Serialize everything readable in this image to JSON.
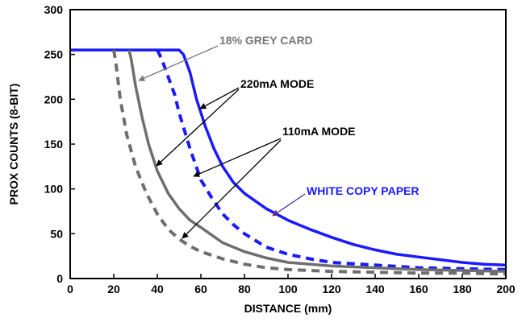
{
  "chart_data": {
    "type": "line",
    "title": "",
    "xlabel": "DISTANCE (mm)",
    "ylabel": "PROX COUNTS (8-BIT)",
    "xlim": [
      0,
      200
    ],
    "ylim": [
      0,
      300
    ],
    "xticks": [
      0,
      20,
      40,
      60,
      80,
      100,
      120,
      140,
      160,
      180,
      200
    ],
    "yticks": [
      0,
      50,
      100,
      150,
      200,
      250,
      300
    ],
    "grid": false,
    "series": [
      {
        "color": "#1a1aff",
        "style": "solid",
        "x": [
          0,
          50,
          52,
          55,
          58,
          62,
          66,
          70,
          75,
          80,
          90,
          100,
          110,
          120,
          130,
          140,
          150,
          160,
          170,
          180,
          190,
          200
        ],
        "y": [
          255,
          255,
          250,
          230,
          200,
          170,
          145,
          125,
          107,
          95,
          78,
          65,
          55,
          46,
          38,
          32,
          27,
          24,
          21,
          18,
          16,
          15
        ]
      },
      {
        "color": "#1a1aff",
        "style": "dashed",
        "x": [
          40,
          42,
          45,
          48,
          50,
          55,
          60,
          65,
          70,
          75,
          80,
          90,
          100,
          110,
          120,
          140,
          160,
          180,
          200
        ],
        "y": [
          255,
          245,
          225,
          205,
          185,
          145,
          110,
          90,
          72,
          60,
          50,
          35,
          27,
          22,
          18,
          15,
          12,
          11,
          10
        ]
      },
      {
        "color": "#6e6e6e",
        "style": "solid",
        "x": [
          27,
          28,
          30,
          33,
          36,
          40,
          45,
          50,
          55,
          60,
          70,
          80,
          90,
          100,
          120,
          140,
          160,
          180,
          200
        ],
        "y": [
          255,
          245,
          215,
          180,
          150,
          120,
          95,
          78,
          65,
          57,
          40,
          30,
          23,
          18,
          14,
          12,
          10,
          9,
          8
        ]
      },
      {
        "color": "#6e6e6e",
        "style": "dashed",
        "x": [
          20,
          21,
          23,
          26,
          30,
          35,
          40,
          45,
          50,
          55,
          60,
          70,
          80,
          90,
          100,
          120,
          140,
          160,
          180,
          200
        ],
        "y": [
          255,
          240,
          200,
          160,
          125,
          95,
          72,
          55,
          44,
          36,
          30,
          22,
          16,
          12,
          10,
          8,
          7,
          6,
          6,
          5
        ]
      }
    ],
    "annotations": [
      {
        "text": "18% GREY CARD",
        "color": "#777777"
      },
      {
        "text": "220mA MODE",
        "color": "#000000"
      },
      {
        "text": "110mA MODE",
        "color": "#000000"
      },
      {
        "text": "WHITE COPY PAPER",
        "color": "#1a1aff"
      }
    ]
  }
}
